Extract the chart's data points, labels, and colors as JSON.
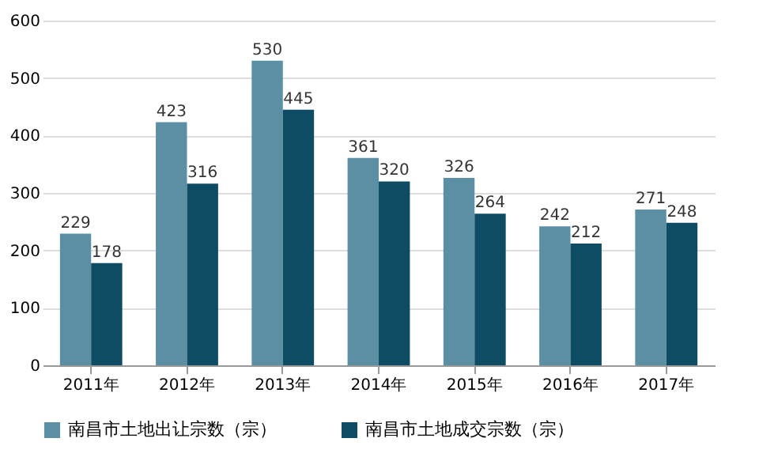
{
  "chart_data": {
    "type": "bar",
    "categories": [
      "2011年",
      "2012年",
      "2013年",
      "2014年",
      "2015年",
      "2016年",
      "2017年"
    ],
    "series": [
      {
        "name": "南昌市土地出让宗数（宗）",
        "color": "#5b8fa3",
        "values": [
          229,
          423,
          530,
          361,
          326,
          242,
          271
        ]
      },
      {
        "name": "南昌市土地成交宗数（宗）",
        "color": "#0e4c63",
        "values": [
          178,
          316,
          445,
          320,
          264,
          212,
          248
        ]
      }
    ],
    "ylim": [
      0,
      600
    ],
    "yticks": [
      0,
      100,
      200,
      300,
      400,
      500,
      600
    ],
    "grid": "y",
    "legend": "bottom",
    "data_labels": true
  }
}
